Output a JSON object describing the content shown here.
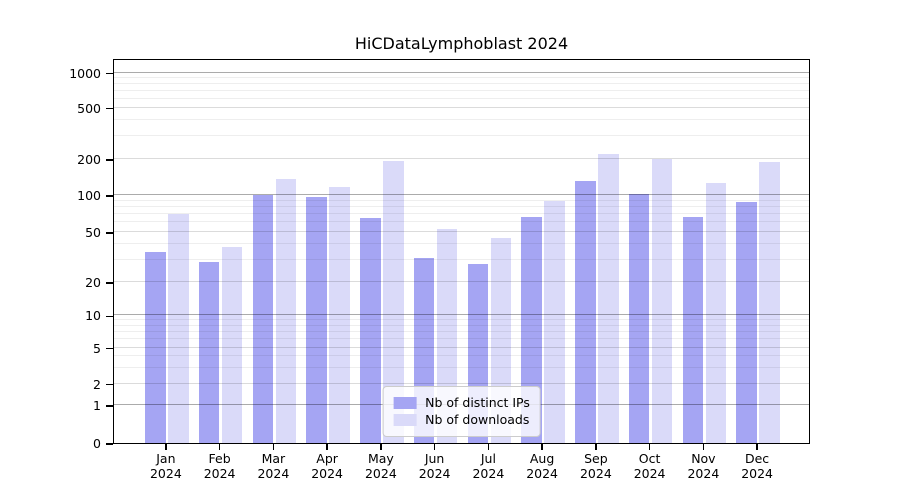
{
  "title": "HiCDataLymphoblast 2024",
  "chart_data": {
    "type": "bar",
    "title": "HiCDataLymphoblast 2024",
    "categories": [
      "Jan",
      "Feb",
      "Mar",
      "Apr",
      "May",
      "Jun",
      "Jul",
      "Aug",
      "Sep",
      "Oct",
      "Nov",
      "Dec"
    ],
    "category_year": "2024",
    "series": [
      {
        "name": "Nb of distinct IPs",
        "color": "#a5a5f3",
        "values": [
          35,
          29,
          100,
          97,
          65,
          31,
          28,
          66,
          130,
          102,
          66,
          88
        ]
      },
      {
        "name": "Nb of downloads",
        "color": "#dadaf9",
        "values": [
          70,
          38,
          135,
          117,
          192,
          53,
          45,
          89,
          220,
          200,
          125,
          190
        ]
      }
    ],
    "yticks": [
      0,
      1,
      2,
      5,
      10,
      20,
      50,
      100,
      200,
      500,
      1000
    ],
    "ylim": [
      0,
      1150
    ],
    "yscale": "custom-log-with-zero",
    "xlabel": "",
    "ylabel": "",
    "grid": true,
    "minor_grid": true,
    "legend_position": "lower center"
  }
}
